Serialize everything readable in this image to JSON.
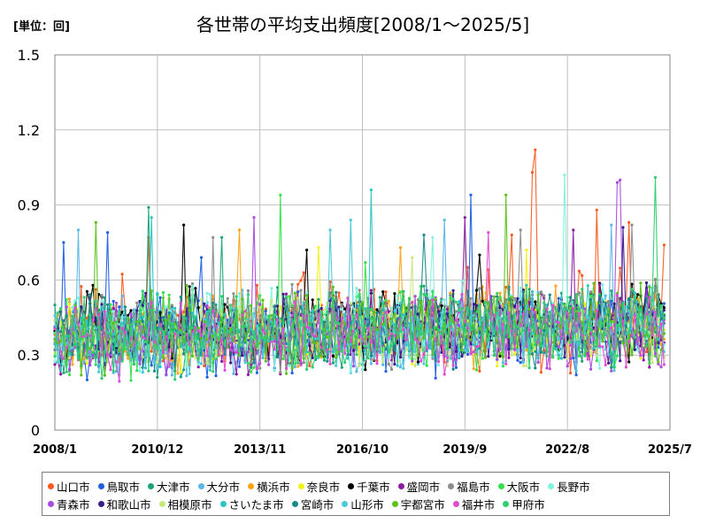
{
  "chart_data": {
    "type": "line",
    "title": "各世帯の平均支出頻度[2008/1～2025/5]",
    "unit_label": "[単位：回]",
    "x_tick_labels": [
      "2008/1",
      "2010/12",
      "2013/11",
      "2016/10",
      "2019/9",
      "2022/8",
      "2025/7"
    ],
    "y_tick_labels": [
      "0",
      "0.3",
      "0.6",
      "0.9",
      "1.2",
      "1.5"
    ],
    "ylim": [
      0,
      1.5
    ],
    "x_range": [
      "2008-01",
      "2025-07"
    ],
    "grid": true,
    "legend_position": "bottom",
    "series": [
      {
        "name": "山口市",
        "color": "#ff5a1f",
        "base": 0.4,
        "amp": 0.14,
        "peaks": [
          [
            "2021-01",
            0.78
          ],
          [
            "2021-08",
            1.03
          ],
          [
            "2021-09",
            1.12
          ],
          [
            "2023-06",
            0.88
          ],
          [
            "2024-05",
            0.83
          ],
          [
            "2025-05",
            0.74
          ],
          [
            "2010-09",
            0.77
          ]
        ]
      },
      {
        "name": "鳥取市",
        "color": "#1f5fe0",
        "base": 0.36,
        "amp": 0.12,
        "peaks": [
          [
            "2008-04",
            0.75
          ],
          [
            "2009-07",
            0.79
          ],
          [
            "2012-03",
            0.69
          ],
          [
            "2019-11",
            0.94
          ]
        ]
      },
      {
        "name": "大津市",
        "color": "#1aa37a",
        "base": 0.38,
        "amp": 0.12,
        "peaks": [
          [
            "2010-09",
            0.89
          ],
          [
            "2012-10",
            0.77
          ]
        ]
      },
      {
        "name": "大分市",
        "color": "#5ab8e6",
        "base": 0.37,
        "amp": 0.12,
        "peaks": [
          [
            "2008-09",
            0.8
          ],
          [
            "2019-02",
            0.84
          ],
          [
            "2023-11",
            0.82
          ]
        ]
      },
      {
        "name": "横浜市",
        "color": "#ffa31a",
        "base": 0.38,
        "amp": 0.11,
        "peaks": [
          [
            "2013-04",
            0.8
          ],
          [
            "2017-11",
            0.73
          ]
        ]
      },
      {
        "name": "奈良市",
        "color": "#f2f21a",
        "base": 0.36,
        "amp": 0.1,
        "peaks": [
          [
            "2015-07",
            0.73
          ],
          [
            "2021-06",
            0.72
          ]
        ]
      },
      {
        "name": "千葉市",
        "color": "#000000",
        "base": 0.39,
        "amp": 0.12,
        "peaks": [
          [
            "2011-09",
            0.82
          ],
          [
            "2015-03",
            0.72
          ],
          [
            "2020-02",
            0.7
          ]
        ]
      },
      {
        "name": "盛岡市",
        "color": "#8a1aa3",
        "base": 0.38,
        "amp": 0.12,
        "peaks": [
          [
            "2019-09",
            0.85
          ],
          [
            "2022-10",
            0.8
          ]
        ]
      },
      {
        "name": "福島市",
        "color": "#8c8c8c",
        "base": 0.4,
        "amp": 0.12,
        "peaks": [
          [
            "2012-07",
            0.77
          ],
          [
            "2021-04",
            0.8
          ],
          [
            "2024-06",
            0.82
          ]
        ]
      },
      {
        "name": "大阪市",
        "color": "#35e04a",
        "base": 0.37,
        "amp": 0.12,
        "peaks": [
          [
            "2014-06",
            0.94
          ],
          [
            "2016-11",
            0.67
          ]
        ]
      },
      {
        "name": "長野市",
        "color": "#7ff2e0",
        "base": 0.38,
        "amp": 0.12,
        "peaks": [
          [
            "2022-07",
            1.02
          ],
          [
            "2018-10",
            0.77
          ]
        ]
      },
      {
        "name": "青森市",
        "color": "#a64ce0",
        "base": 0.36,
        "amp": 0.12,
        "peaks": [
          [
            "2013-09",
            0.85
          ],
          [
            "2024-01",
            0.99
          ],
          [
            "2024-02",
            1.0
          ]
        ]
      },
      {
        "name": "和歌山市",
        "color": "#3a1a8c",
        "base": 0.38,
        "amp": 0.11,
        "peaks": [
          [
            "2024-03",
            0.81
          ]
        ]
      },
      {
        "name": "相模原市",
        "color": "#c8e87a",
        "base": 0.36,
        "amp": 0.1,
        "peaks": [
          [
            "2018-03",
            0.69
          ]
        ]
      },
      {
        "name": "さいたま市",
        "color": "#2ec4c4",
        "base": 0.37,
        "amp": 0.11,
        "peaks": [
          [
            "2017-01",
            0.96
          ],
          [
            "2010-10",
            0.85
          ]
        ]
      },
      {
        "name": "宮崎市",
        "color": "#178a8a",
        "base": 0.37,
        "amp": 0.11,
        "peaks": [
          [
            "2018-07",
            0.78
          ]
        ]
      },
      {
        "name": "山形市",
        "color": "#4cc8d8",
        "base": 0.36,
        "amp": 0.11,
        "peaks": [
          [
            "2015-11",
            0.8
          ],
          [
            "2016-06",
            0.84
          ]
        ]
      },
      {
        "name": "宇都宮市",
        "color": "#5ac21a",
        "base": 0.38,
        "amp": 0.12,
        "peaks": [
          [
            "2009-03",
            0.83
          ],
          [
            "2020-11",
            0.94
          ]
        ]
      },
      {
        "name": "福井市",
        "color": "#e04cd0",
        "base": 0.36,
        "amp": 0.11,
        "peaks": [
          [
            "2020-05",
            0.79
          ]
        ]
      },
      {
        "name": "甲府市",
        "color": "#2ecf6e",
        "base": 0.37,
        "amp": 0.12,
        "peaks": [
          [
            "2025-02",
            1.01
          ]
        ]
      }
    ]
  }
}
